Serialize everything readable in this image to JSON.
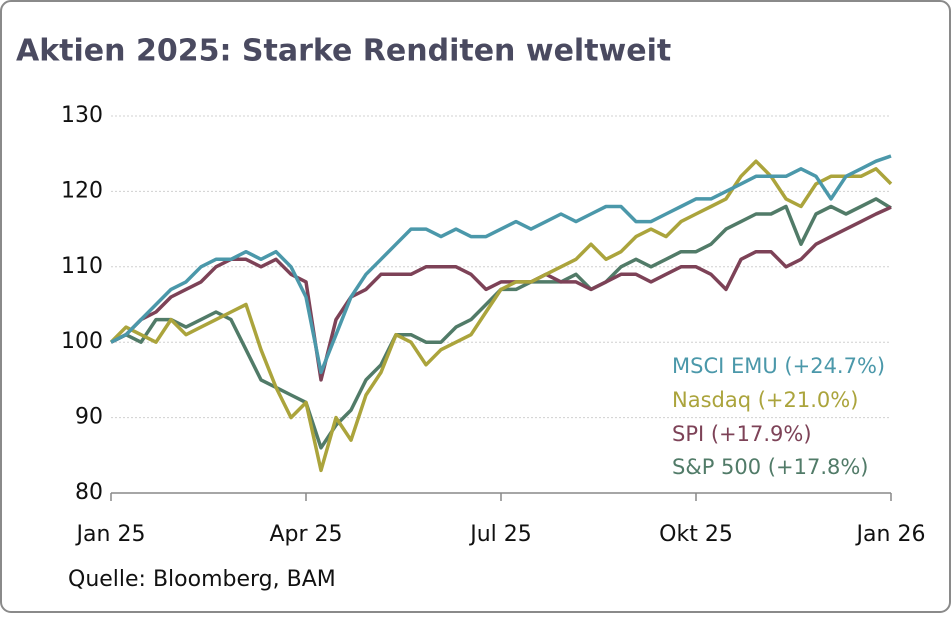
{
  "chart_data": {
    "type": "line",
    "title": "Aktien 2025: Starke Renditen weltweit",
    "source": "Quelle: Bloomberg, BAM",
    "categories": [
      "Jan 25",
      null,
      null,
      null,
      null,
      null,
      null,
      null,
      null,
      null,
      null,
      null,
      null,
      "Apr 25",
      null,
      null,
      null,
      null,
      null,
      null,
      null,
      null,
      null,
      null,
      null,
      null,
      "Jul 25",
      null,
      null,
      null,
      null,
      null,
      null,
      null,
      null,
      null,
      null,
      null,
      null,
      "Okt 25",
      null,
      null,
      null,
      null,
      null,
      null,
      null,
      null,
      null,
      null,
      null,
      null,
      "Jan 26"
    ],
    "ylim": [
      80,
      130
    ],
    "yticks": [
      80,
      90,
      100,
      110,
      120,
      130
    ],
    "grid": true,
    "legend": "lower-right",
    "series": [
      {
        "name": "S&P 500 (+17.8%)",
        "color": "#517b68",
        "values": [
          100,
          101,
          100,
          103,
          103,
          102,
          103,
          104,
          103,
          99,
          95,
          94,
          93,
          92,
          86,
          89,
          91,
          95,
          97,
          101,
          101,
          100,
          100,
          102,
          103,
          105,
          107,
          107,
          108,
          108,
          108,
          109,
          107,
          108,
          110,
          111,
          110,
          111,
          112,
          112,
          113,
          115,
          116,
          117,
          117,
          118,
          113,
          117,
          118,
          117,
          118,
          119,
          117.8
        ]
      },
      {
        "name": "SPI (+17.9%)",
        "color": "#7d4257",
        "values": [
          100,
          101,
          103,
          104,
          106,
          107,
          108,
          110,
          111,
          111,
          110,
          111,
          109,
          108,
          95,
          103,
          106,
          107,
          109,
          109,
          109,
          110,
          110,
          110,
          109,
          107,
          108,
          108,
          108,
          109,
          108,
          108,
          107,
          108,
          109,
          109,
          108,
          109,
          110,
          110,
          109,
          107,
          111,
          112,
          112,
          110,
          111,
          113,
          114,
          115,
          116,
          117,
          117.9
        ]
      },
      {
        "name": "Nasdaq (+21.0%)",
        "color": "#aba43c",
        "values": [
          100,
          102,
          101,
          100,
          103,
          101,
          102,
          103,
          104,
          105,
          99,
          94,
          90,
          92,
          83,
          90,
          87,
          93,
          96,
          101,
          100,
          97,
          99,
          100,
          101,
          104,
          107,
          108,
          108,
          109,
          110,
          111,
          113,
          111,
          112,
          114,
          115,
          114,
          116,
          117,
          118,
          119,
          122,
          124,
          122,
          119,
          118,
          121,
          122,
          122,
          122,
          123,
          121
        ]
      },
      {
        "name": "MSCI EMU (+24.7%)",
        "color": "#4b98aa",
        "values": [
          100,
          101,
          103,
          105,
          107,
          108,
          110,
          111,
          111,
          112,
          111,
          112,
          110,
          106,
          96,
          101,
          106,
          109,
          111,
          113,
          115,
          115,
          114,
          115,
          114,
          114,
          115,
          116,
          115,
          116,
          117,
          116,
          117,
          118,
          118,
          116,
          116,
          117,
          118,
          119,
          119,
          120,
          121,
          122,
          122,
          122,
          123,
          122,
          119,
          122,
          123,
          124,
          124.7
        ]
      }
    ]
  }
}
